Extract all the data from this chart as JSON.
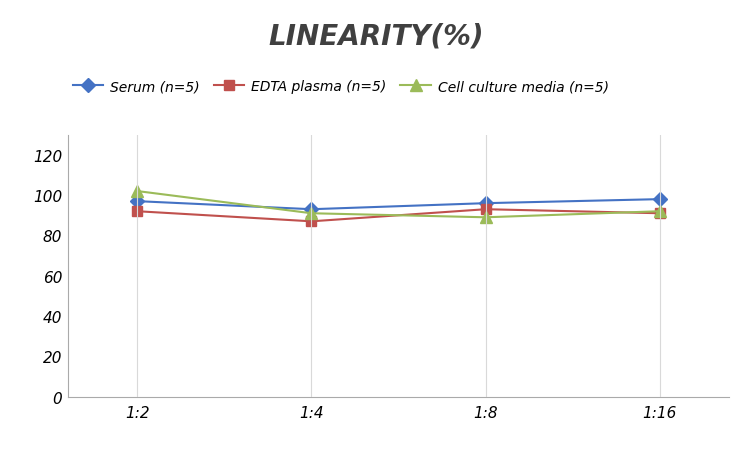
{
  "title": "LINEARITY(%)",
  "x_labels": [
    "1:2",
    "1:4",
    "1:8",
    "1:16"
  ],
  "x_positions": [
    0,
    1,
    2,
    3
  ],
  "series": [
    {
      "label": "Serum (n=5)",
      "color": "#4472C4",
      "marker": "D",
      "markersize": 7,
      "values": [
        97,
        93,
        96,
        98
      ]
    },
    {
      "label": "EDTA plasma (n=5)",
      "color": "#C0504D",
      "marker": "s",
      "markersize": 7,
      "values": [
        92,
        87,
        93,
        91
      ]
    },
    {
      "label": "Cell culture media (n=5)",
      "color": "#9BBB59",
      "marker": "^",
      "markersize": 8,
      "values": [
        102,
        91,
        89,
        92
      ]
    }
  ],
  "ylim": [
    0,
    130
  ],
  "yticks": [
    0,
    20,
    40,
    60,
    80,
    100,
    120
  ],
  "background_color": "#FFFFFF",
  "title_fontsize": 20,
  "legend_fontsize": 10,
  "tick_fontsize": 11,
  "grid_color": "#D9D9D9"
}
